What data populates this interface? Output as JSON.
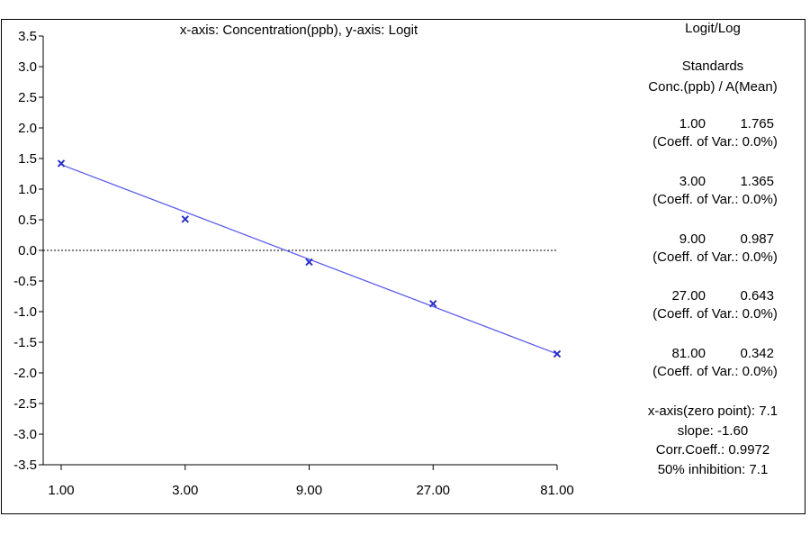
{
  "chart_data": {
    "type": "scatter",
    "title": "x-axis: Concentration(ppb), y-axis: Logit",
    "xlabel": "Concentration(ppb)",
    "ylabel": "Logit",
    "x_scale": "log",
    "x_tick_labels": [
      "1.00",
      "3.00",
      "9.00",
      "27.00",
      "81.00"
    ],
    "x_ticks": [
      1,
      3,
      9,
      27,
      81
    ],
    "y_ticks": [
      3.5,
      3.0,
      2.5,
      2.0,
      1.5,
      1.0,
      0.5,
      0.0,
      -0.5,
      -1.0,
      -1.5,
      -2.0,
      -2.5,
      -3.0,
      -3.5
    ],
    "y_tick_labels": [
      "3.5",
      "3.0",
      "2.5",
      "2.0",
      "1.5",
      "1.0",
      "0.5",
      "0.0",
      "-0.5",
      "-1.0",
      "-1.5",
      "-2.0",
      "-2.5",
      "-3.0",
      "-3.5"
    ],
    "ylim": [
      -3.5,
      3.5
    ],
    "xlim": [
      1,
      81
    ],
    "points": [
      {
        "x": 1,
        "y": 1.42
      },
      {
        "x": 3,
        "y": 0.51
      },
      {
        "x": 9,
        "y": -0.19
      },
      {
        "x": 27,
        "y": -0.87
      },
      {
        "x": 81,
        "y": -1.69
      }
    ],
    "fit_line": [
      {
        "x": 1,
        "y": 1.4
      },
      {
        "x": 81,
        "y": -1.69
      }
    ],
    "zero_line": 0.0,
    "colors": {
      "series": "#2b2fc7",
      "line": "#5b5bf0",
      "zero_line": "#000000"
    }
  },
  "panel": {
    "title": "Logit/Log",
    "standards_heading": "Standards",
    "columns_heading": "Conc.(ppb) / A(Mean)",
    "standards": [
      {
        "conc": "1.00",
        "mean": "1.765",
        "cv": "(Coeff. of Var.: 0.0%)"
      },
      {
        "conc": "3.00",
        "mean": "1.365",
        "cv": "(Coeff. of Var.: 0.0%)"
      },
      {
        "conc": "9.00",
        "mean": "0.987",
        "cv": "(Coeff. of Var.: 0.0%)"
      },
      {
        "conc": "27.00",
        "mean": "0.643",
        "cv": "(Coeff. of Var.: 0.0%)"
      },
      {
        "conc": "81.00",
        "mean": "0.342",
        "cv": "(Coeff. of Var.: 0.0%)"
      }
    ],
    "zero_point": "x-axis(zero point): 7.1",
    "slope": "slope: -1.60",
    "corr": "Corr.Coeff.: 0.9972",
    "inhibition": "50% inhibition: 7.1"
  }
}
